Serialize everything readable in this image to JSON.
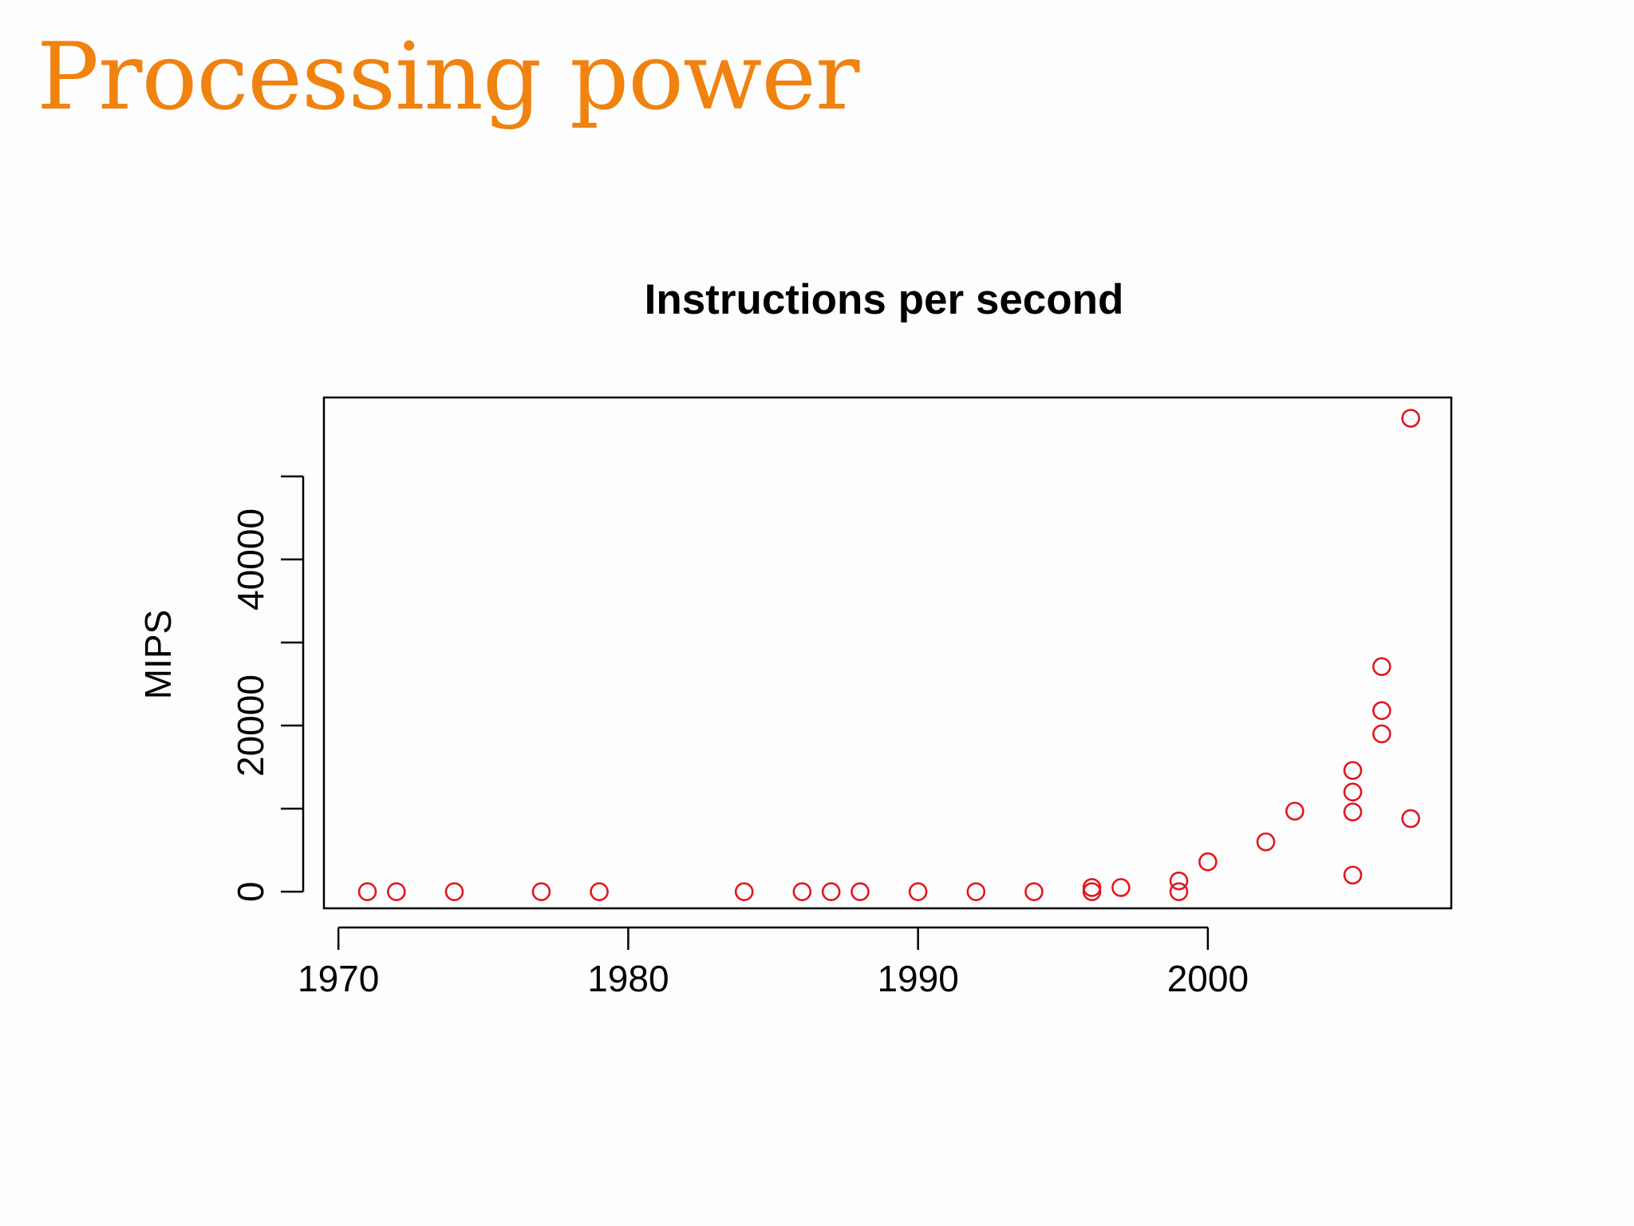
{
  "slide": {
    "title": "Processing power",
    "title_color": "#f0820f",
    "background": "#fdfdfd"
  },
  "chart_data": {
    "type": "scatter",
    "title": "Instructions per second",
    "xlabel": "",
    "ylabel": "MIPS",
    "xlim": [
      1969.5,
      2008.4
    ],
    "ylim": [
      -2000,
      59500
    ],
    "x_ticks": [
      1970,
      1980,
      1990,
      2000
    ],
    "x_tick_labels": [
      "1970",
      "1980",
      "1990",
      "2000"
    ],
    "y_ticks": [
      0,
      10000,
      20000,
      30000,
      40000,
      50000
    ],
    "y_tick_labels": [
      {
        "value": 0,
        "label": "0"
      },
      {
        "value": 20000,
        "label": "20000"
      },
      {
        "value": 40000,
        "label": "40000"
      }
    ],
    "marker": "open-circle",
    "marker_color": "#e3161e",
    "grid": false,
    "legend": "none",
    "points": [
      {
        "x": 1971,
        "y": 0
      },
      {
        "x": 1972,
        "y": 0
      },
      {
        "x": 1974,
        "y": 0
      },
      {
        "x": 1977,
        "y": 0
      },
      {
        "x": 1979,
        "y": 0
      },
      {
        "x": 1984,
        "y": 0
      },
      {
        "x": 1986,
        "y": 0
      },
      {
        "x": 1987,
        "y": 0
      },
      {
        "x": 1988,
        "y": 0
      },
      {
        "x": 1990,
        "y": 0
      },
      {
        "x": 1992,
        "y": 0
      },
      {
        "x": 1994,
        "y": 0
      },
      {
        "x": 1996,
        "y": 500
      },
      {
        "x": 1996,
        "y": 0
      },
      {
        "x": 1997,
        "y": 500
      },
      {
        "x": 1999,
        "y": 1300
      },
      {
        "x": 1999,
        "y": 0
      },
      {
        "x": 2000,
        "y": 3600
      },
      {
        "x": 2002,
        "y": 6000
      },
      {
        "x": 2003,
        "y": 9700
      },
      {
        "x": 2005,
        "y": 14600
      },
      {
        "x": 2005,
        "y": 12000
      },
      {
        "x": 2005,
        "y": 9600
      },
      {
        "x": 2005,
        "y": 2000
      },
      {
        "x": 2006,
        "y": 27100
      },
      {
        "x": 2006,
        "y": 21800
      },
      {
        "x": 2006,
        "y": 19000
      },
      {
        "x": 2007,
        "y": 57000
      },
      {
        "x": 2007,
        "y": 8800
      }
    ]
  }
}
